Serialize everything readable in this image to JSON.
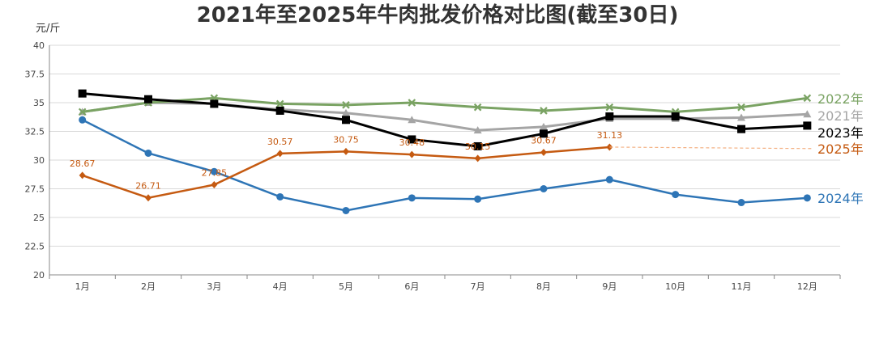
{
  "chart_data": {
    "type": "line",
    "title": "2021年至2025年牛肉批发价格对比图(截至30日)",
    "ylabel": "元/斤",
    "ylim": [
      20,
      40
    ],
    "yticks": [
      "20",
      "22.5",
      "25",
      "27.5",
      "30",
      "32.5",
      "35",
      "37.5",
      "40"
    ],
    "categories": [
      "1月",
      "2月",
      "3月",
      "4月",
      "5月",
      "6月",
      "7月",
      "8月",
      "9月",
      "10月",
      "11月",
      "12月"
    ],
    "grid": true,
    "legend_placement": "right, at line ends",
    "series": [
      {
        "name": "2021年",
        "color": "#a5a5a5",
        "marker": "triangle",
        "values": [
          34.2,
          35.0,
          34.9,
          34.4,
          34.1,
          33.5,
          32.6,
          32.9,
          33.6,
          33.6,
          33.7,
          34.0
        ]
      },
      {
        "name": "2022年",
        "color": "#7aa363",
        "marker": "x",
        "values": [
          34.2,
          35.0,
          35.4,
          34.9,
          34.8,
          35.0,
          34.6,
          34.3,
          34.6,
          34.2,
          34.6,
          35.4
        ]
      },
      {
        "name": "2023年",
        "color": "#000000",
        "marker": "square",
        "values": [
          35.8,
          35.3,
          34.9,
          34.3,
          33.5,
          31.8,
          31.2,
          32.3,
          33.8,
          33.8,
          32.7,
          33.0
        ]
      },
      {
        "name": "2024年",
        "color": "#2e75b6",
        "marker": "circle",
        "values": [
          33.5,
          30.6,
          29.0,
          26.8,
          25.6,
          26.7,
          26.6,
          27.5,
          28.3,
          27.0,
          26.3,
          26.7
        ]
      },
      {
        "name": "2025年",
        "color": "#c55a11",
        "marker": "diamond",
        "values": [
          28.67,
          26.71,
          27.85,
          30.57,
          30.75,
          30.48,
          30.15,
          30.67,
          31.13,
          null,
          null,
          null
        ],
        "data_labels": [
          "28.67",
          "26.71",
          "27.85",
          "30.57",
          "30.75",
          "30.48",
          "30.15",
          "30.67",
          "31.13"
        ],
        "dashed_extension": [
          31.13,
          31.0
        ]
      }
    ]
  }
}
